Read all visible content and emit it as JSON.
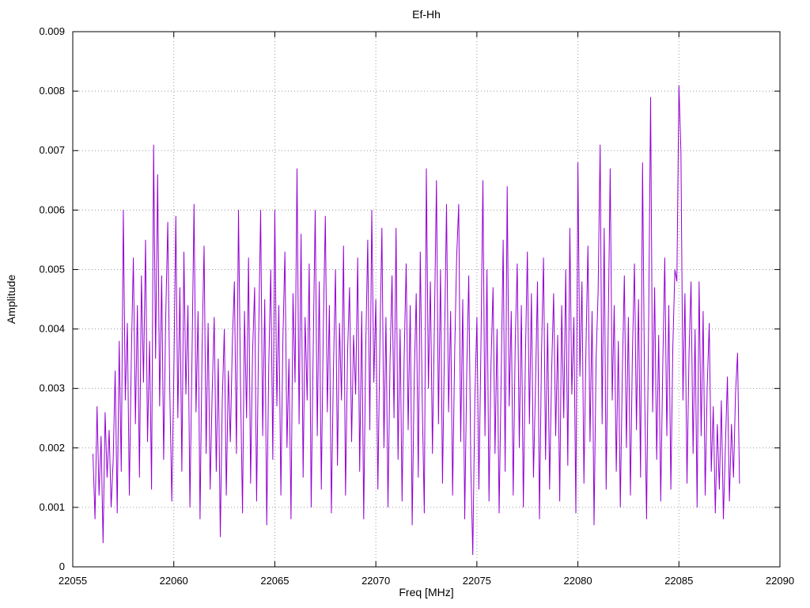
{
  "chart_data": {
    "type": "line",
    "title": "Ef-Hh",
    "xlabel": "Freq [MHz]",
    "ylabel": "Amplitude",
    "xlim": [
      22055,
      22090
    ],
    "ylim": [
      0,
      0.009
    ],
    "x_ticks": [
      22055,
      22060,
      22065,
      22070,
      22075,
      22080,
      22085,
      22090
    ],
    "x_tick_labels": [
      "22055",
      "22060",
      "22065",
      "22070",
      "22075",
      "22080",
      "22085",
      "22090"
    ],
    "y_ticks": [
      0,
      0.001,
      0.002,
      0.003,
      0.004,
      0.005,
      0.006,
      0.007,
      0.008,
      0.009
    ],
    "y_tick_labels": [
      "0",
      "0.001",
      "0.002",
      "0.003",
      "0.004",
      "0.005",
      "0.006",
      "0.007",
      "0.008",
      "0.009"
    ],
    "grid": "dotted",
    "legend_position": "none",
    "line_color": "#9400d3",
    "series": [
      {
        "name": "Ef-Hh",
        "x_start": 22056.0,
        "x_step": 0.1,
        "values": [
          0.0019,
          0.0008,
          0.0027,
          0.0012,
          0.0022,
          0.0004,
          0.0026,
          0.0015,
          0.0023,
          0.001,
          0.0018,
          0.0033,
          0.0009,
          0.0038,
          0.0016,
          0.006,
          0.0028,
          0.0041,
          0.0012,
          0.0036,
          0.0052,
          0.0024,
          0.0044,
          0.0015,
          0.0049,
          0.0031,
          0.0055,
          0.0021,
          0.0038,
          0.0013,
          0.0071,
          0.0035,
          0.0066,
          0.0027,
          0.0049,
          0.0018,
          0.0042,
          0.0058,
          0.003,
          0.0011,
          0.0032,
          0.0059,
          0.0025,
          0.0047,
          0.0016,
          0.0053,
          0.0029,
          0.0044,
          0.001,
          0.0035,
          0.0061,
          0.0026,
          0.0043,
          0.0008,
          0.0037,
          0.0054,
          0.0019,
          0.0041,
          0.0013,
          0.0029,
          0.0042,
          0.0016,
          0.0035,
          0.0005,
          0.0028,
          0.004,
          0.0012,
          0.0033,
          0.0021,
          0.0038,
          0.0048,
          0.0019,
          0.006,
          0.0031,
          0.0009,
          0.0043,
          0.0025,
          0.0052,
          0.0014,
          0.0036,
          0.0047,
          0.0011,
          0.0039,
          0.006,
          0.0022,
          0.0045,
          0.0007,
          0.0034,
          0.005,
          0.0018,
          0.006,
          0.0027,
          0.0044,
          0.0012,
          0.0038,
          0.0053,
          0.002,
          0.0035,
          0.0008,
          0.0046,
          0.0031,
          0.0067,
          0.0024,
          0.0056,
          0.0015,
          0.0042,
          0.0028,
          0.0051,
          0.001,
          0.0037,
          0.006,
          0.0022,
          0.0048,
          0.0013,
          0.004,
          0.0059,
          0.0026,
          0.0044,
          0.0009,
          0.0033,
          0.005,
          0.0017,
          0.0041,
          0.0028,
          0.0054,
          0.0012,
          0.0036,
          0.0047,
          0.0021,
          0.0039,
          0.0029,
          0.0052,
          0.0016,
          0.0043,
          0.0008,
          0.0037,
          0.0055,
          0.0023,
          0.006,
          0.0031,
          0.0045,
          0.0013,
          0.0038,
          0.0057,
          0.002,
          0.0042,
          0.001,
          0.0034,
          0.0049,
          0.0025,
          0.0057,
          0.0018,
          0.004,
          0.0011,
          0.0035,
          0.0051,
          0.0023,
          0.0044,
          0.0007,
          0.0032,
          0.0046,
          0.0015,
          0.0053,
          0.0027,
          0.0009,
          0.0067,
          0.003,
          0.0048,
          0.0019,
          0.0041,
          0.0065,
          0.0024,
          0.005,
          0.0014,
          0.0038,
          0.0061,
          0.0026,
          0.0043,
          0.0012,
          0.0036,
          0.0052,
          0.0061,
          0.0021,
          0.0045,
          0.0008,
          0.0033,
          0.0049,
          0.0017,
          0.0002,
          0.0028,
          0.0042,
          0.0013,
          0.0037,
          0.0065,
          0.0022,
          0.005,
          0.0011,
          0.0034,
          0.0047,
          0.0019,
          0.004,
          0.0009,
          0.0031,
          0.0055,
          0.0016,
          0.0064,
          0.0027,
          0.0043,
          0.0012,
          0.0038,
          0.0051,
          0.002,
          0.0044,
          0.001,
          0.0035,
          0.0053,
          0.0024,
          0.0046,
          0.0015,
          0.003,
          0.0048,
          0.0008,
          0.0036,
          0.0052,
          0.0018,
          0.0041,
          0.0013,
          0.0033,
          0.0046,
          0.0022,
          0.0039,
          0.0011,
          0.0044,
          0.0025,
          0.005,
          0.0017,
          0.0057,
          0.0029,
          0.0042,
          0.0009,
          0.0068,
          0.0032,
          0.0048,
          0.0014,
          0.0037,
          0.0054,
          0.0021,
          0.0043,
          0.0007,
          0.0035,
          0.0046,
          0.0071,
          0.0024,
          0.0057,
          0.0013,
          0.004,
          0.0067,
          0.0028,
          0.0044,
          0.0016,
          0.0038,
          0.001,
          0.0033,
          0.0049,
          0.002,
          0.0042,
          0.0012,
          0.0036,
          0.0051,
          0.0023,
          0.0045,
          0.0015,
          0.0068,
          0.003,
          0.0008,
          0.0041,
          0.0079,
          0.0026,
          0.0047,
          0.0018,
          0.0039,
          0.0011,
          0.0034,
          0.0052,
          0.0022,
          0.0044,
          0.0013,
          0.0037,
          0.005,
          0.0048,
          0.0081,
          0.007,
          0.0028,
          0.0046,
          0.0014,
          0.0036,
          0.0048,
          0.0019,
          0.004,
          0.001,
          0.0048,
          0.0022,
          0.0043,
          0.0012,
          0.003,
          0.0041,
          0.0016,
          0.0027,
          0.0009,
          0.0024,
          0.0013,
          0.0028,
          0.0008,
          0.002,
          0.0032,
          0.0011,
          0.0024,
          0.0015,
          0.0029,
          0.0036,
          0.0014
        ]
      }
    ]
  }
}
